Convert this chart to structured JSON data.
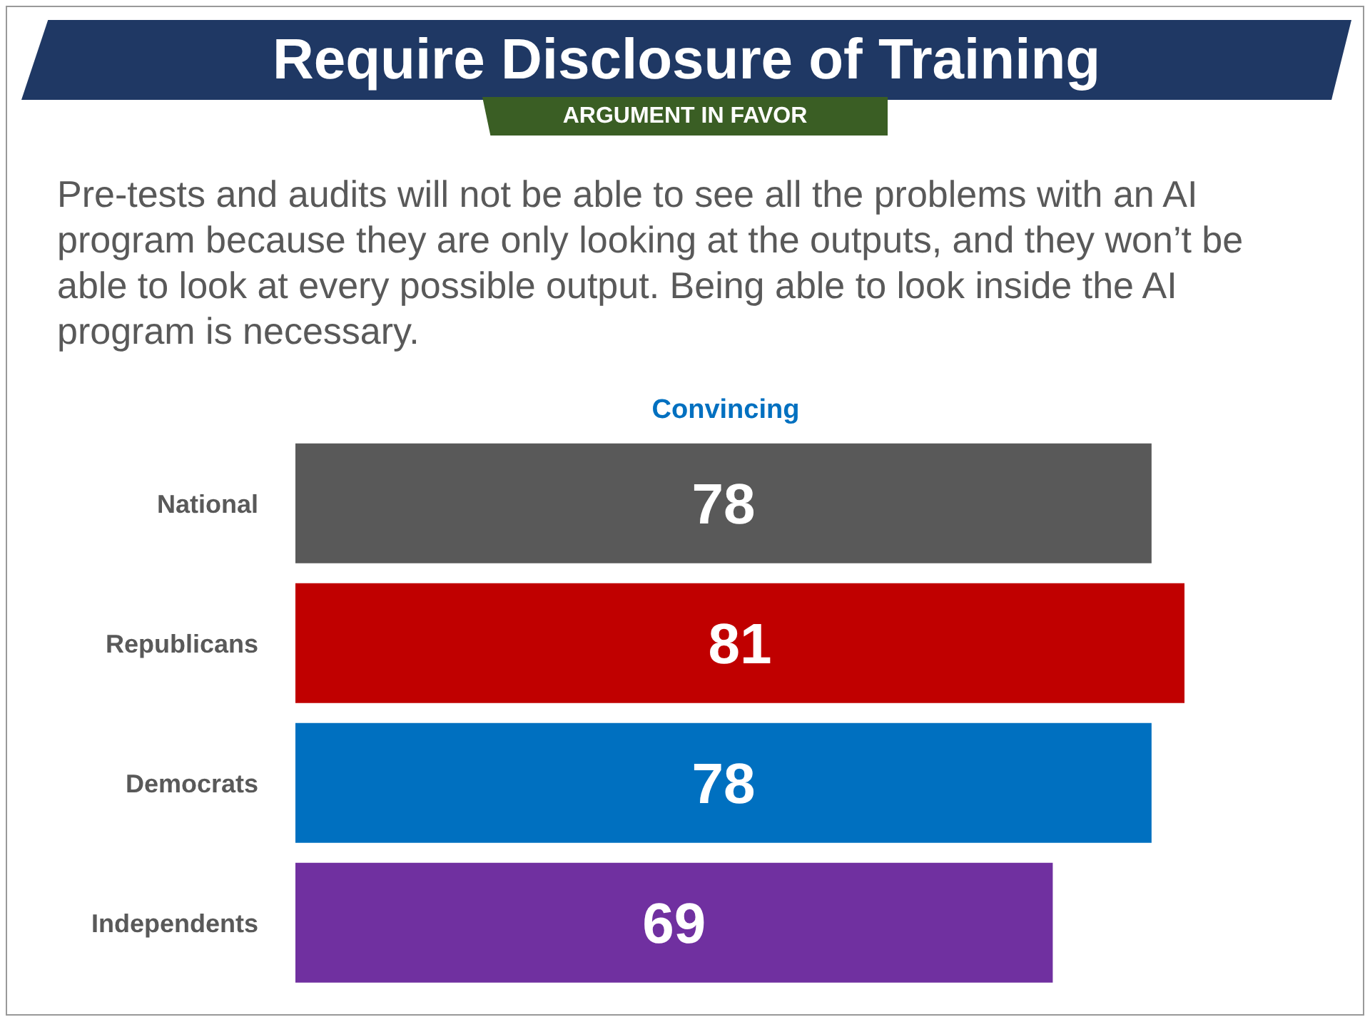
{
  "chart_data": {
    "type": "bar",
    "orientation": "horizontal",
    "title": "Require Disclosure of Training",
    "subtitle": "ARGUMENT IN FAVOR",
    "annotations": [
      "Pre-tests and audits will not be able to see all the problems with an AI program because they are only looking at the outputs, and they won’t be able to look at every possible output. Being able to look inside the AI program is necessary."
    ],
    "xlabel": "Convincing",
    "categories": [
      "National",
      "Republicans",
      "Democrats",
      "Independents"
    ],
    "values": [
      78,
      81,
      78,
      69
    ],
    "colors": [
      "#595959",
      "#c00000",
      "#0070c0",
      "#7030a0"
    ],
    "data_labels": true
  }
}
